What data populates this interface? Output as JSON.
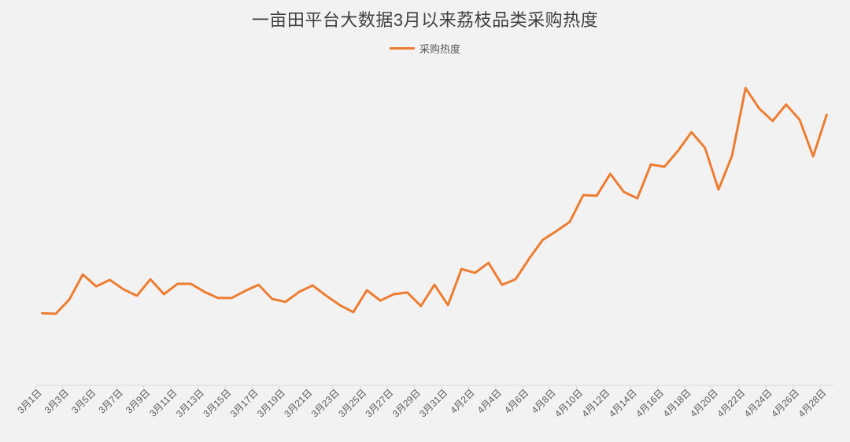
{
  "chart_data": {
    "type": "line",
    "title": "一亩田平台大数据3月以来荔枝品类采购热度",
    "legend": {
      "position": "top"
    },
    "grid": false,
    "y_axis_visible": false,
    "ylim": [
      0,
      100
    ],
    "x_tick_labels": [
      "3月1日",
      "3月3日",
      "3月5日",
      "3月7日",
      "3月9日",
      "3月11日",
      "3月13日",
      "3月15日",
      "3月17日",
      "3月19日",
      "3月21日",
      "3月23日",
      "3月25日",
      "3月27日",
      "3月29日",
      "3月31日",
      "4月2日",
      "4月4日",
      "4月6日",
      "4月8日",
      "4月10日",
      "4月12日",
      "4月14日",
      "4月16日",
      "4月18日",
      "4月20日",
      "4月22日",
      "4月24日",
      "4月26日",
      "4月28日"
    ],
    "series": [
      {
        "name": "采购热度",
        "color": "#ed7d31",
        "values": [
          22.4,
          22.2,
          26.6,
          34.4,
          30.7,
          32.7,
          29.8,
          27.8,
          32.9,
          28.3,
          31.5,
          31.5,
          29.0,
          27.1,
          27.1,
          29.3,
          31.2,
          26.8,
          25.9,
          29.0,
          31.0,
          27.8,
          24.9,
          22.7,
          29.5,
          26.3,
          28.3,
          28.8,
          24.6,
          31.2,
          24.9,
          36.1,
          34.9,
          38.0,
          31.2,
          32.9,
          39.3,
          45.1,
          47.8,
          50.7,
          59.0,
          58.8,
          65.6,
          60.0,
          58.0,
          68.5,
          67.8,
          72.7,
          78.5,
          73.7,
          60.7,
          71.2,
          92.2,
          85.9,
          82.0,
          87.1,
          82.4,
          71.0,
          83.9
        ]
      }
    ]
  },
  "colors": {
    "background": "#f2f2f2",
    "title": "#404040",
    "text": "#595959",
    "axis": "#d9d9d9"
  }
}
